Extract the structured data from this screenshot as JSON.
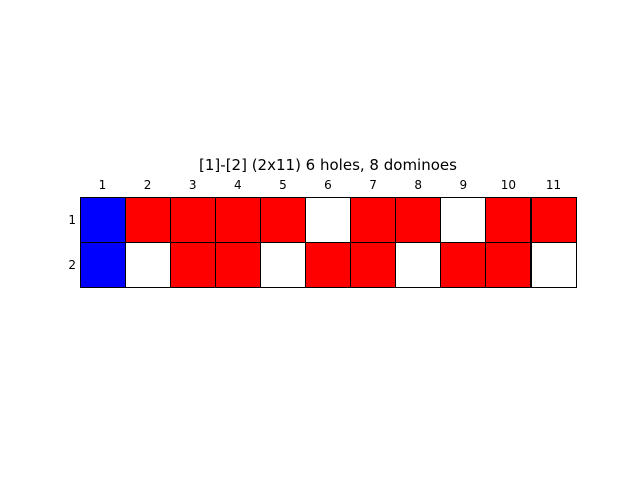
{
  "board": {
    "title": "[1]-[2]  (2x11) 6 holes, 8 dominoes",
    "column_labels": [
      "1",
      "2",
      "3",
      "4",
      "5",
      "6",
      "7",
      "8",
      "9",
      "10",
      "11"
    ],
    "row_labels": [
      "1",
      "2"
    ],
    "colors": {
      "blue": "#0000ff",
      "red": "#ff0000",
      "white": "#ffffff",
      "grid": "#000000"
    },
    "cells": [
      [
        "blue",
        "red",
        "red",
        "red",
        "red",
        "white",
        "red",
        "red",
        "white",
        "red",
        "red"
      ],
      [
        "blue",
        "white",
        "red",
        "red",
        "white",
        "red",
        "red",
        "white",
        "red",
        "red",
        "white"
      ]
    ]
  }
}
